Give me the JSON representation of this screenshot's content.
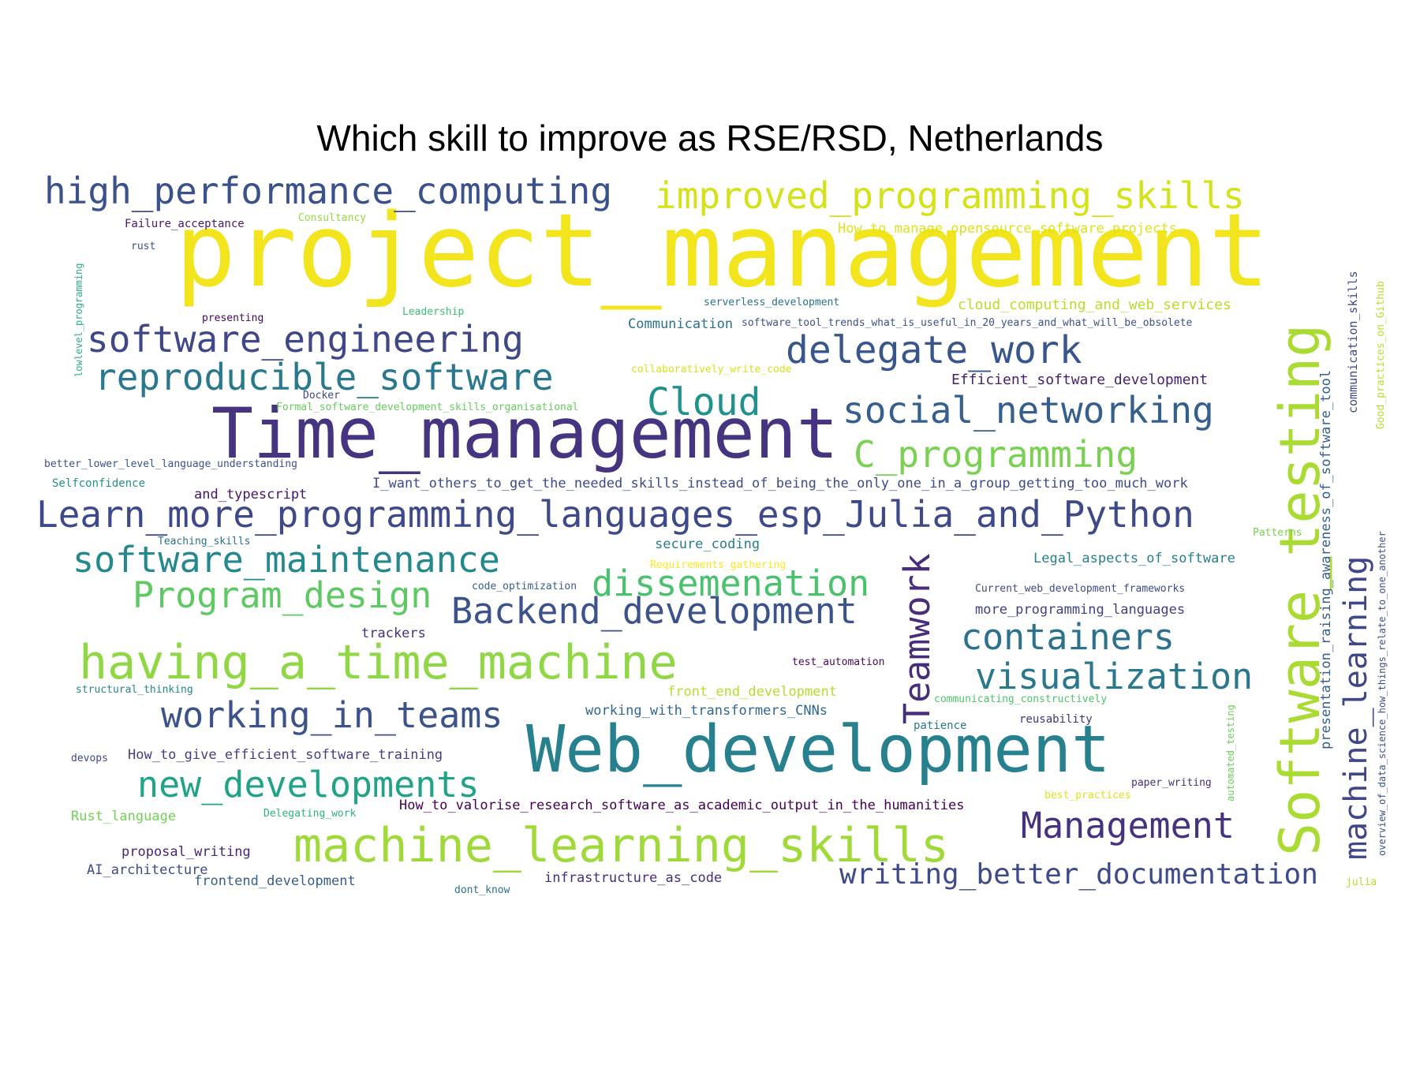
{
  "title": "Which skill to improve as RSE/RSD, Netherlands",
  "colors": {
    "background": "#ffffff",
    "title": "#000000",
    "palette": [
      "#fde725",
      "#d0e11c",
      "#a0da39",
      "#6ece58",
      "#4ac16d",
      "#1fa187",
      "#21918c",
      "#277f8e",
      "#2e6e8e",
      "#365c8d",
      "#3f4788",
      "#46327e",
      "#440154"
    ]
  },
  "words": [
    {
      "text": "project_management",
      "color": "#f2e41d"
    },
    {
      "text": "Time_management",
      "color": "#463480"
    },
    {
      "text": "Web_development",
      "color": "#27808e"
    },
    {
      "text": "Software_testing",
      "color": "#a9db33"
    },
    {
      "text": "high_performance_computing",
      "color": "#3b518b"
    },
    {
      "text": "improved_programming_skills",
      "color": "#d4e21a"
    },
    {
      "text": "software_engineering",
      "color": "#3f4788"
    },
    {
      "text": "reproducible_software",
      "color": "#2a788e"
    },
    {
      "text": "delegate_work",
      "color": "#39568c"
    },
    {
      "text": "Cloud",
      "color": "#21918c"
    },
    {
      "text": "social_networking",
      "color": "#355f8d"
    },
    {
      "text": "C_programming",
      "color": "#7ad151"
    },
    {
      "text": "Learn_more_programming_languages_esp_Julia_and_Python",
      "color": "#3e4989"
    },
    {
      "text": "software_maintenance",
      "color": "#23898e"
    },
    {
      "text": "Program_design",
      "color": "#5ec962"
    },
    {
      "text": "dissemenation",
      "color": "#4ac16d"
    },
    {
      "text": "Backend_development",
      "color": "#3b528b"
    },
    {
      "text": "Teamwork",
      "color": "#472d7b"
    },
    {
      "text": "containers",
      "color": "#2c728e"
    },
    {
      "text": "visualization",
      "color": "#2a788e"
    },
    {
      "text": "having_a_time_machine",
      "color": "#8fd744"
    },
    {
      "text": "working_in_teams",
      "color": "#3b528b"
    },
    {
      "text": "new_developments",
      "color": "#20a386"
    },
    {
      "text": "machine_learning_skills",
      "color": "#9fda3a"
    },
    {
      "text": "Management",
      "color": "#46327e"
    },
    {
      "text": "writing_better_documentation",
      "color": "#3e4a89"
    },
    {
      "text": "machine_learning",
      "color": "#3f4788"
    },
    {
      "text": "presentation_raising_awareness_of_software_tool",
      "color": "#355f8d"
    },
    {
      "text": "communication_skills",
      "color": "#3e4989"
    },
    {
      "text": "Good_practices_on_Github",
      "color": "#b5de2b"
    },
    {
      "text": "overview_of_data_science_how_things_relate_to_one_another",
      "color": "#3b528b"
    },
    {
      "text": "Failure_acceptance",
      "color": "#48186a"
    },
    {
      "text": "Consultancy",
      "color": "#95d840"
    },
    {
      "text": "rust",
      "color": "#3b528b"
    },
    {
      "text": "How_to_manage_opensource_software_projects",
      "color": "#dde318"
    },
    {
      "text": "lowlevel_programming",
      "color": "#29af7f"
    },
    {
      "text": "serverless_development",
      "color": "#2c728e"
    },
    {
      "text": "cloud_computing_and_web_services",
      "color": "#b8de29"
    },
    {
      "text": "presenting",
      "color": "#46075a"
    },
    {
      "text": "Leadership",
      "color": "#3dbc74"
    },
    {
      "text": "Communication",
      "color": "#2d708e"
    },
    {
      "text": "software_tool_trends_what_is_useful_in_20_years_and_what_will_be_obsolete",
      "color": "#3b528b"
    },
    {
      "text": "collaboratively_write_code",
      "color": "#d8e219"
    },
    {
      "text": "Efficient_software_development",
      "color": "#481f70"
    },
    {
      "text": "Docker",
      "color": "#404688"
    },
    {
      "text": "Formal_software_development_skills_organisational",
      "color": "#67cc5c"
    },
    {
      "text": "better_lower_level_language_understanding",
      "color": "#3b528b"
    },
    {
      "text": "Selfconfidence",
      "color": "#21918c"
    },
    {
      "text": "I_want_others_to_get_the_needed_skills_instead_of_being_the_only_one_in_a_group_getting_too_much_work",
      "color": "#3e4a89"
    },
    {
      "text": "and_typescript",
      "color": "#471365"
    },
    {
      "text": "Teaching_skills",
      "color": "#2c728e"
    },
    {
      "text": "Patterns",
      "color": "#7ad151"
    },
    {
      "text": "secure_coding",
      "color": "#287c8e"
    },
    {
      "text": "Legal_aspects_of_software",
      "color": "#277f8e"
    },
    {
      "text": "Requirements_gathering",
      "color": "#fde725"
    },
    {
      "text": "code_optimization",
      "color": "#355f8d"
    },
    {
      "text": "Current_web_development_frameworks",
      "color": "#3e4989"
    },
    {
      "text": "more_programming_languages",
      "color": "#424086"
    },
    {
      "text": "trackers",
      "color": "#46327e"
    },
    {
      "text": "test_automation",
      "color": "#46085c"
    },
    {
      "text": "front_end_development",
      "color": "#b5de2b"
    },
    {
      "text": "structural_thinking",
      "color": "#25858e"
    },
    {
      "text": "working_with_transformers_CNNs",
      "color": "#31688e"
    },
    {
      "text": "communicating_constructively",
      "color": "#50c46a"
    },
    {
      "text": "patience",
      "color": "#2a788e"
    },
    {
      "text": "reusability",
      "color": "#46317e"
    },
    {
      "text": "automated_testing",
      "color": "#6ccd5a"
    },
    {
      "text": "devops",
      "color": "#3e4989"
    },
    {
      "text": "How_to_give_efficient_software_training",
      "color": "#433e85"
    },
    {
      "text": "paper_writing",
      "color": "#472f7d"
    },
    {
      "text": "best_practices",
      "color": "#dde318"
    },
    {
      "text": "Rust_language",
      "color": "#73d056"
    },
    {
      "text": "Delegating_work",
      "color": "#2eb37c"
    },
    {
      "text": "How_to_valorise_research_software_as_academic_output_in_the_humanities",
      "color": "#440154"
    },
    {
      "text": "proposal_writing",
      "color": "#482576"
    },
    {
      "text": "AI_architecture",
      "color": "#3e4a89"
    },
    {
      "text": "frontend_development",
      "color": "#355f8d"
    },
    {
      "text": "dont_know",
      "color": "#2c728e"
    },
    {
      "text": "infrastructure_as_code",
      "color": "#472d7b"
    },
    {
      "text": "julia",
      "color": "#b2dd2d"
    }
  ]
}
